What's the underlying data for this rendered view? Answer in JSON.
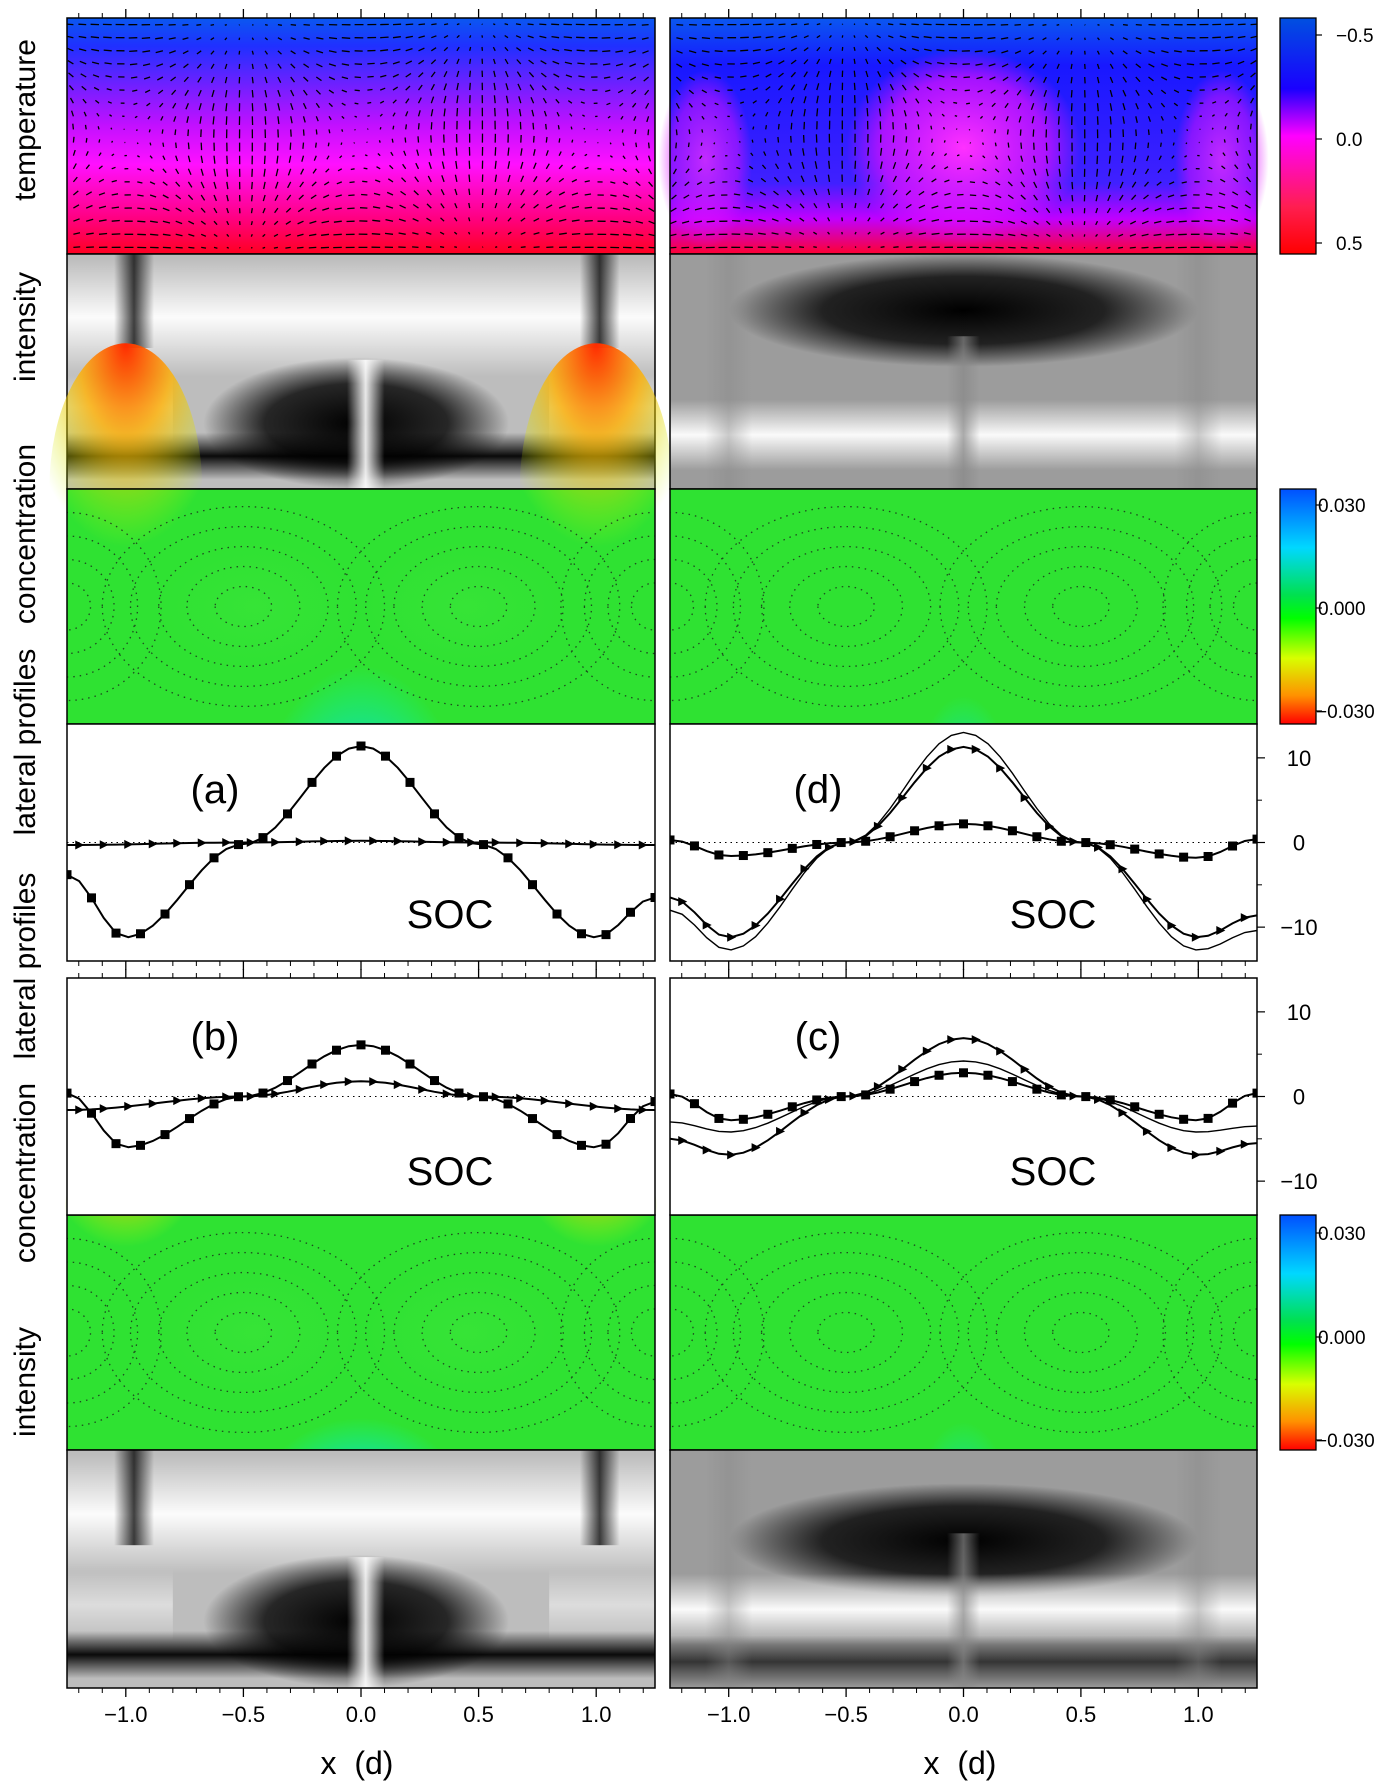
{
  "row_labels": {
    "temperature": "temperature",
    "intensity_top": "intensity",
    "concentration_top": "concentration",
    "profiles_top": "lateral profiles",
    "profiles_bottom": "lateral profiles",
    "concentration_bottom": "concentration",
    "intensity_bottom": "intensity"
  },
  "panel_tags": {
    "a": "(a)",
    "b": "(b)",
    "c": "(c)",
    "d": "(d)"
  },
  "soc_label": "SOC",
  "x_axis": {
    "label": "x  (d)",
    "range": [
      -1.25,
      1.25
    ],
    "ticks": [
      -1.0,
      -0.5,
      0.0,
      0.5,
      1.0
    ],
    "tick_labels": [
      "−1.0",
      "−0.5",
      "0.0",
      "0.5",
      "1.0"
    ]
  },
  "profile_axis": {
    "range": [
      -14,
      14
    ],
    "ticks": [
      10,
      0,
      -10
    ],
    "tick_labels": [
      "10",
      "0",
      "−10"
    ]
  },
  "colorbars": {
    "temperature": {
      "tick_labels": [
        "−0.5",
        "0.0",
        "0.5"
      ],
      "stops": [
        "#0050e0",
        "#1a00ff",
        "#ff00ff",
        "#ff1e50",
        "#ff0000"
      ]
    },
    "concentration": {
      "tick_labels": [
        "0.030",
        "0.000",
        "−0.030"
      ],
      "stops": [
        "#0050ff",
        "#00d8ff",
        "#00e050",
        "#00ff00",
        "#d8ff00",
        "#ff9000",
        "#ff0000"
      ]
    }
  },
  "colors": {
    "temp_cold": "#1a38ff",
    "temp_mid": "#ff22ff",
    "temp_hot": "#ff1030",
    "conc_base": "#2fe232",
    "conc_red": "#ff3000",
    "conc_blue": "#1050ff"
  },
  "chart_data": [
    {
      "type": "line",
      "panel": "(a)",
      "xlabel": "x  (d)",
      "ylabel": "lateral profiles",
      "ylim": [
        -14,
        14
      ],
      "series": [
        {
          "marker": "square",
          "x": [
            -1.25,
            -1.0,
            -0.5,
            0.0,
            0.5,
            1.0,
            1.25
          ],
          "y": [
            -3.8,
            -11.2,
            -0.2,
            11.4,
            -0.2,
            -11.2,
            -6.5
          ]
        },
        {
          "marker": "triangle",
          "x": [
            -1.25,
            -0.5,
            0.0,
            0.5,
            1.25
          ],
          "y": [
            -0.3,
            0.0,
            0.2,
            0.0,
            -0.3
          ]
        }
      ]
    },
    {
      "type": "line",
      "panel": "(d)",
      "xlabel": "x  (d)",
      "ylabel": "lateral profiles",
      "ylim": [
        -14,
        14
      ],
      "series": [
        {
          "marker": "square",
          "x": [
            -1.25,
            -1.0,
            -0.5,
            0.0,
            0.5,
            1.0,
            1.25
          ],
          "y": [
            0.3,
            -1.6,
            0.0,
            2.2,
            0.0,
            -1.8,
            0.4
          ]
        },
        {
          "marker": "triangle",
          "x": [
            -1.25,
            -1.0,
            -0.5,
            0.0,
            0.5,
            1.0,
            1.25
          ],
          "y": [
            -6.5,
            -11.2,
            0.0,
            11.3,
            0.0,
            -11.2,
            -8.6
          ]
        },
        {
          "marker": "none",
          "x": [
            -1.25,
            -1.0,
            -0.5,
            0.0,
            0.5,
            1.0,
            1.25
          ],
          "y": [
            -8.0,
            -12.7,
            0.0,
            13.0,
            0.0,
            -12.7,
            -10.4
          ]
        }
      ]
    },
    {
      "type": "line",
      "panel": "(b)",
      "xlabel": "x  (d)",
      "ylabel": "lateral profiles",
      "ylim": [
        -14,
        14
      ],
      "series": [
        {
          "marker": "square",
          "x": [
            -1.25,
            -1.0,
            -0.5,
            0.0,
            0.5,
            1.0,
            1.25
          ],
          "y": [
            0.4,
            -6.0,
            0.0,
            6.1,
            0.0,
            -6.0,
            -0.6
          ]
        },
        {
          "marker": "triangle",
          "x": [
            -1.25,
            -0.5,
            0.0,
            0.5,
            1.25
          ],
          "y": [
            -1.6,
            0.0,
            1.8,
            0.0,
            -1.6
          ]
        }
      ]
    },
    {
      "type": "line",
      "panel": "(c)",
      "xlabel": "x  (d)",
      "ylabel": "lateral profiles",
      "ylim": [
        -14,
        14
      ],
      "series": [
        {
          "marker": "square",
          "x": [
            -1.25,
            -1.0,
            -0.5,
            0.0,
            0.5,
            1.0,
            1.25
          ],
          "y": [
            0.3,
            -2.8,
            0.0,
            2.8,
            0.0,
            -2.8,
            0.4
          ]
        },
        {
          "marker": "triangle",
          "x": [
            -1.25,
            -1.0,
            -0.5,
            0.0,
            0.5,
            1.0,
            1.25
          ],
          "y": [
            -5.0,
            -6.9,
            0.0,
            6.9,
            0.0,
            -6.9,
            -5.5
          ]
        },
        {
          "marker": "none",
          "x": [
            -1.25,
            -1.0,
            -0.5,
            0.0,
            0.5,
            1.0,
            1.25
          ],
          "y": [
            -3.0,
            -4.2,
            0.0,
            4.2,
            0.0,
            -4.2,
            -3.5
          ]
        }
      ]
    }
  ]
}
